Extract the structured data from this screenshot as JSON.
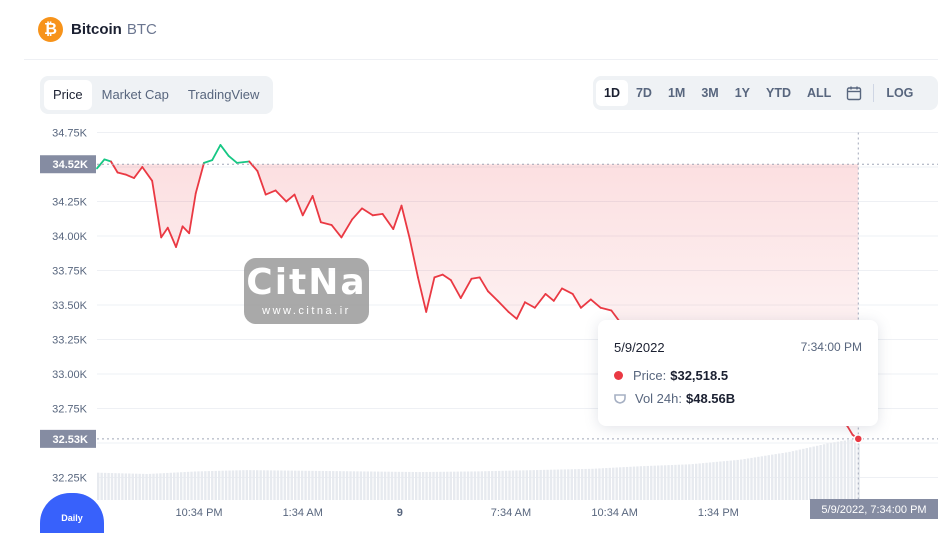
{
  "header": {
    "logo_glyph": "₿",
    "name": "Bitcoin",
    "symbol": "BTC"
  },
  "tabs": [
    {
      "label": "Price",
      "active": true
    },
    {
      "label": "Market Cap",
      "active": false
    },
    {
      "label": "TradingView",
      "active": false
    }
  ],
  "ranges": [
    "1D",
    "7D",
    "1M",
    "3M",
    "1Y",
    "YTD",
    "ALL"
  ],
  "active_range": "1D",
  "log_label": "LOG",
  "calendar_icon": "calendar-icon",
  "tooltip": {
    "date": "5/9/2022",
    "time": "7:34:00 PM",
    "price_label": "Price:",
    "price_value": "$32,518.5",
    "vol_label": "Vol 24h:",
    "vol_value": "$48.56B"
  },
  "watermark": {
    "big": "CitNa",
    "small": "www.citna.ir"
  },
  "badge_label": "Daily",
  "chart_data": {
    "type": "line",
    "ylim": [
      32100,
      34850
    ],
    "yticks": [
      32250,
      32500,
      32750,
      33000,
      33250,
      33500,
      33750,
      34000,
      34250,
      34500,
      34750
    ],
    "ytick_labels": [
      "32.25K",
      "",
      "32.75K",
      "33.00K",
      "33.25K",
      "33.50K",
      "33.75K",
      "34.00K",
      "34.25K",
      "",
      "34.75K"
    ],
    "open_value": 34520,
    "open_label": "34.52K",
    "current_value": 32530,
    "current_label": "32.53K",
    "xlim": [
      0,
      1
    ],
    "xtick_labels": [
      {
        "x": 0.124,
        "label": "10:34 PM"
      },
      {
        "x": 0.25,
        "label": "1:34 AM"
      },
      {
        "x": 0.368,
        "label": "9"
      },
      {
        "x": 0.503,
        "label": "7:34 AM"
      },
      {
        "x": 0.629,
        "label": "10:34 AM"
      },
      {
        "x": 0.755,
        "label": "1:34 PM"
      }
    ],
    "hover_x_label": "5/9/2022, 7:34:00 PM",
    "colors": {
      "up": "#16c784",
      "down": "#ea3943",
      "grid": "#eef0f4",
      "volume": "#e7eaef",
      "axis_label_bg": "#858ca2"
    },
    "price_points": [
      [
        0.0,
        34490
      ],
      [
        0.009,
        34555
      ],
      [
        0.017,
        34540
      ],
      [
        0.025,
        34460
      ],
      [
        0.035,
        34445
      ],
      [
        0.045,
        34420
      ],
      [
        0.055,
        34500
      ],
      [
        0.067,
        34400
      ],
      [
        0.078,
        33990
      ],
      [
        0.086,
        34060
      ],
      [
        0.096,
        33920
      ],
      [
        0.104,
        34070
      ],
      [
        0.112,
        34020
      ],
      [
        0.12,
        34310
      ],
      [
        0.13,
        34530
      ],
      [
        0.14,
        34550
      ],
      [
        0.15,
        34660
      ],
      [
        0.16,
        34580
      ],
      [
        0.17,
        34530
      ],
      [
        0.185,
        34540
      ],
      [
        0.195,
        34470
      ],
      [
        0.205,
        34300
      ],
      [
        0.217,
        34330
      ],
      [
        0.23,
        34250
      ],
      [
        0.24,
        34300
      ],
      [
        0.25,
        34150
      ],
      [
        0.262,
        34290
      ],
      [
        0.272,
        34100
      ],
      [
        0.285,
        34080
      ],
      [
        0.297,
        33990
      ],
      [
        0.31,
        34120
      ],
      [
        0.322,
        34200
      ],
      [
        0.335,
        34150
      ],
      [
        0.347,
        34160
      ],
      [
        0.36,
        34050
      ],
      [
        0.37,
        34220
      ],
      [
        0.38,
        33980
      ],
      [
        0.39,
        33700
      ],
      [
        0.4,
        33450
      ],
      [
        0.41,
        33700
      ],
      [
        0.42,
        33720
      ],
      [
        0.43,
        33680
      ],
      [
        0.442,
        33550
      ],
      [
        0.455,
        33690
      ],
      [
        0.465,
        33700
      ],
      [
        0.475,
        33600
      ],
      [
        0.487,
        33530
      ],
      [
        0.5,
        33450
      ],
      [
        0.51,
        33400
      ],
      [
        0.52,
        33520
      ],
      [
        0.532,
        33480
      ],
      [
        0.545,
        33580
      ],
      [
        0.555,
        33530
      ],
      [
        0.565,
        33620
      ],
      [
        0.578,
        33580
      ],
      [
        0.588,
        33480
      ],
      [
        0.6,
        33540
      ],
      [
        0.612,
        33480
      ],
      [
        0.625,
        33460
      ],
      [
        0.635,
        33380
      ],
      [
        0.648,
        33250
      ],
      [
        0.66,
        33300
      ],
      [
        0.67,
        33350
      ],
      [
        0.682,
        33290
      ],
      [
        0.695,
        33100
      ],
      [
        0.707,
        33230
      ],
      [
        0.718,
        32870
      ],
      [
        0.728,
        33180
      ],
      [
        0.74,
        32950
      ],
      [
        0.75,
        33050
      ],
      [
        0.762,
        33050
      ],
      [
        0.775,
        32990
      ],
      [
        0.788,
        33040
      ],
      [
        0.8,
        32940
      ],
      [
        0.812,
        32890
      ],
      [
        0.822,
        33030
      ],
      [
        0.832,
        32980
      ],
      [
        0.845,
        33210
      ],
      [
        0.853,
        32980
      ],
      [
        0.862,
        33050
      ],
      [
        0.872,
        33030
      ],
      [
        0.882,
        32920
      ],
      [
        0.89,
        32870
      ],
      [
        0.898,
        32720
      ],
      [
        0.905,
        32680
      ],
      [
        0.912,
        32620
      ],
      [
        0.918,
        32560
      ],
      [
        0.925,
        32530
      ]
    ],
    "volume_points": [
      [
        0.0,
        0.42
      ],
      [
        0.06,
        0.4
      ],
      [
        0.12,
        0.44
      ],
      [
        0.18,
        0.46
      ],
      [
        0.25,
        0.45
      ],
      [
        0.32,
        0.44
      ],
      [
        0.39,
        0.43
      ],
      [
        0.46,
        0.44
      ],
      [
        0.53,
        0.46
      ],
      [
        0.6,
        0.48
      ],
      [
        0.66,
        0.52
      ],
      [
        0.72,
        0.55
      ],
      [
        0.78,
        0.62
      ],
      [
        0.84,
        0.74
      ],
      [
        0.89,
        0.88
      ],
      [
        0.925,
        0.95
      ]
    ]
  }
}
